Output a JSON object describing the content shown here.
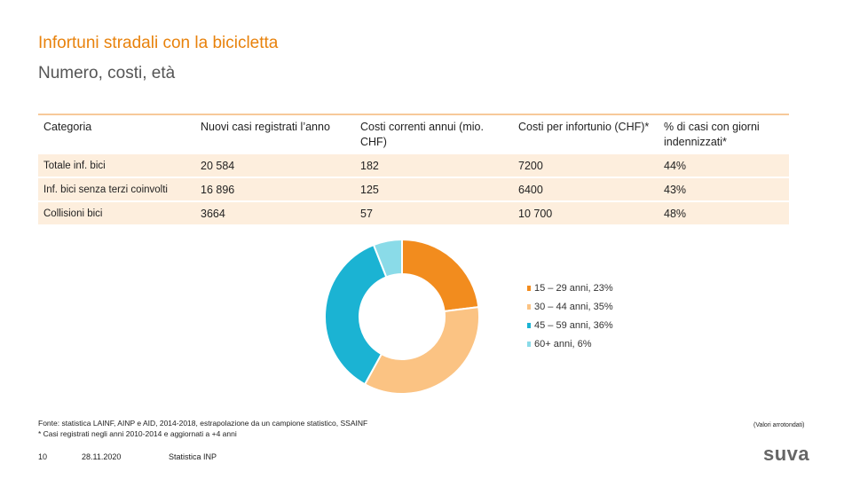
{
  "header": {
    "title": "Infortuni stradali con la bicicletta",
    "subtitle": "Numero, costi, età"
  },
  "table": {
    "columns": [
      "Categoria",
      "Nuovi casi registrati l’anno",
      "Costi correnti annui (mio. CHF)",
      "Costi per infortunio (CHF)*",
      "% di casi con giorni indennizzati*"
    ],
    "rows": [
      [
        "Totale inf. bici",
        "20 584",
        "182",
        "7200",
        "44%"
      ],
      [
        "Inf. bici senza terzi coinvolti",
        "16 896",
        "125",
        "6400",
        "43%"
      ],
      [
        "Collisioni bici",
        "3664",
        "57",
        "10 700",
        "48%"
      ]
    ]
  },
  "chart": {
    "type": "donut",
    "categories": [
      "15 – 29 anni, 23%",
      "30 – 44 anni, 35%",
      "45 – 59 anni, 36%",
      "60+ anni, 6%"
    ],
    "values": [
      23,
      35,
      36,
      6
    ],
    "colors": [
      "#f28c1e",
      "#fbc383",
      "#1bb3d3",
      "#8adbe8"
    ]
  },
  "footer": {
    "source": "Fonte: statistica LAINF, AINP e AID, 2014-2018, estrapolazione da un campione statistico, SSAINF",
    "note": "* Casi registrati negli anni 2010-2014 e aggiornati a +4 anni",
    "rounded": "(Valori arrotondati)",
    "page": "10",
    "date": "28.11.2020",
    "section": "Statistica INP",
    "logo": "suva"
  }
}
